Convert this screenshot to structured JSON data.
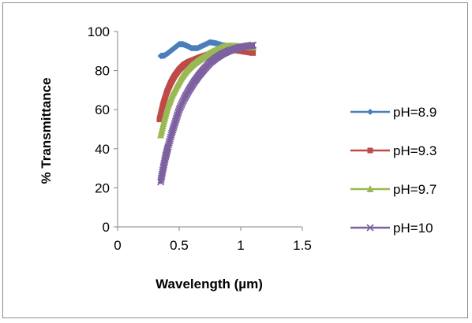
{
  "chart_data": {
    "type": "scatter",
    "title": "",
    "xlabel": "Wavelength (µm)",
    "ylabel": "% Transmittance",
    "xlim": [
      0,
      1.5
    ],
    "ylim": [
      0,
      100
    ],
    "xticks": [
      "0",
      "0.5",
      "1",
      "1.5"
    ],
    "yticks": [
      "0",
      "20",
      "40",
      "60",
      "80",
      "100"
    ],
    "grid": false,
    "legend_position": "right",
    "series": [
      {
        "name": "pH=8.9",
        "color": "#4a7ebb",
        "marker": "diamond",
        "x": [
          0.35,
          0.38,
          0.41,
          0.44,
          0.47,
          0.5,
          0.53,
          0.56,
          0.6,
          0.65,
          0.7,
          0.75,
          0.8,
          0.85,
          0.9,
          0.95,
          1.0,
          1.05,
          1.1
        ],
        "y": [
          87.5,
          87.7,
          89.0,
          90.5,
          92.0,
          93.5,
          93.5,
          92.8,
          91.5,
          91.5,
          93.0,
          94.5,
          94.0,
          93.0,
          92.5,
          92.5,
          92.0,
          92.0,
          92.0
        ]
      },
      {
        "name": "pH=9.3",
        "color": "#be4b48",
        "marker": "square",
        "x": [
          0.34,
          0.37,
          0.4,
          0.43,
          0.46,
          0.5,
          0.54,
          0.58,
          0.62,
          0.66,
          0.7,
          0.75,
          0.8,
          0.85,
          0.9,
          0.95,
          1.0,
          1.05,
          1.1
        ],
        "y": [
          55,
          63,
          69,
          73.5,
          77,
          80.5,
          83,
          84.5,
          85.5,
          86.5,
          87.5,
          88.5,
          89.5,
          90,
          90.5,
          90.5,
          90,
          89.5,
          89
        ]
      },
      {
        "name": "pH=9.7",
        "color": "#98b954",
        "marker": "triangle",
        "x": [
          0.35,
          0.38,
          0.41,
          0.44,
          0.48,
          0.52,
          0.56,
          0.6,
          0.65,
          0.7,
          0.75,
          0.8,
          0.85,
          0.9,
          0.95,
          1.0,
          1.05,
          1.1
        ],
        "y": [
          47,
          55,
          62,
          67,
          72,
          76.5,
          80,
          82.5,
          85,
          87,
          89,
          90.5,
          92,
          92.5,
          92.5,
          92,
          92,
          92
        ]
      },
      {
        "name": "pH=10",
        "color": "#7d60a0",
        "marker": "x",
        "x": [
          0.35,
          0.37,
          0.39,
          0.41,
          0.44,
          0.47,
          0.5,
          0.54,
          0.58,
          0.62,
          0.66,
          0.7,
          0.75,
          0.8,
          0.85,
          0.9,
          0.95,
          1.0,
          1.05,
          1.1
        ],
        "y": [
          23,
          30,
          36,
          41,
          48,
          54,
          60,
          65.5,
          70,
          74,
          77.5,
          80.5,
          84,
          86.5,
          88.5,
          90,
          91,
          92,
          92.5,
          93
        ]
      }
    ]
  }
}
